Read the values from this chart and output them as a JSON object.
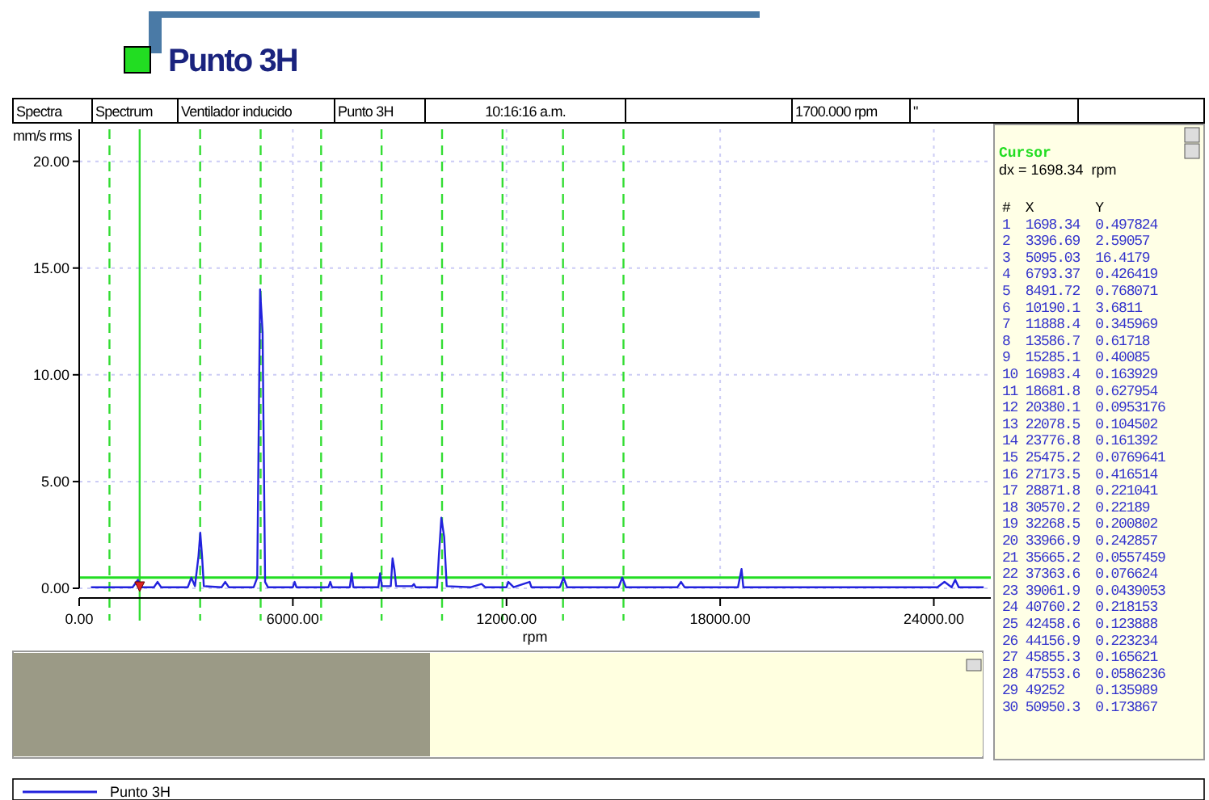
{
  "chart_data": [
    {
      "type": "line",
      "title": "Punto 3H",
      "xlabel": "rpm",
      "ylabel": "mm/s rms",
      "annotations": [
        "Spectra",
        "Spectrum",
        "Ventilador inducido",
        "Punto 3H",
        "10:16:16 a.m.",
        "1700.000 rpm",
        "\""
      ],
      "xlim": [
        0,
        25600
      ],
      "ylim": [
        0,
        21.5
      ],
      "xticks": [
        {
          "value": 0,
          "label": "0.00"
        },
        {
          "value": 6000,
          "label": "6000.00"
        },
        {
          "value": 12000,
          "label": "12000.00"
        },
        {
          "value": 18000,
          "label": "18000.00"
        },
        {
          "value": 24000,
          "label": "24000.00"
        }
      ],
      "yticks": [
        {
          "value": 0,
          "label": "0.00"
        },
        {
          "value": 5,
          "label": "5.00"
        },
        {
          "value": 10,
          "label": "10.00"
        },
        {
          "value": 15,
          "label": "15.00"
        },
        {
          "value": 20,
          "label": "20.00"
        }
      ],
      "grid": true,
      "legend": "bottom",
      "marker": "none",
      "line_style": "solid",
      "ref_lines": [
        {
          "axis": "x",
          "value": 850,
          "color": "#33dd33",
          "line_style": "dashed"
        },
        {
          "axis": "x",
          "value": 1698.34,
          "color": "#33dd33",
          "line_style": "solid"
        },
        {
          "axis": "x",
          "value": 3396.69,
          "color": "#33dd33",
          "line_style": "dashed"
        },
        {
          "axis": "x",
          "value": 5095.03,
          "color": "#33dd33",
          "line_style": "dashed"
        },
        {
          "axis": "x",
          "value": 6793.37,
          "color": "#33dd33",
          "line_style": "dashed"
        },
        {
          "axis": "x",
          "value": 8491.72,
          "color": "#33dd33",
          "line_style": "dashed"
        },
        {
          "axis": "x",
          "value": 10190.1,
          "color": "#33dd33",
          "line_style": "dashed"
        },
        {
          "axis": "x",
          "value": 11888.4,
          "color": "#33dd33",
          "line_style": "dashed"
        },
        {
          "axis": "x",
          "value": 13586.7,
          "color": "#33dd33",
          "line_style": "dashed"
        },
        {
          "axis": "x",
          "value": 15285.1,
          "color": "#33dd33",
          "line_style": "dashed"
        },
        {
          "axis": "y",
          "value": 0.5,
          "color": "#22dd22",
          "line_style": "solid"
        }
      ],
      "series": [
        {
          "name": "Punto 3H",
          "color": "#2222dd",
          "x": [
            330,
            1500,
            1650,
            1750,
            2100,
            2200,
            2300,
            3050,
            3150,
            3250,
            3350,
            3400,
            3450,
            3500,
            4000,
            4100,
            4200,
            4900,
            5000,
            5080,
            5150,
            5220,
            5300,
            6000,
            6050,
            6100,
            7000,
            7050,
            7100,
            7600,
            7650,
            7700,
            8400,
            8450,
            8500,
            8750,
            8800,
            8850,
            8900,
            9350,
            9400,
            9450,
            10050,
            10100,
            10170,
            10250,
            10320,
            11000,
            11300,
            11400,
            12000,
            12050,
            12200,
            12650,
            12700,
            13500,
            13600,
            13700,
            15150,
            15250,
            15350,
            16800,
            16900,
            17000,
            18500,
            18600,
            18650,
            20000,
            24100,
            24300,
            24500,
            24600,
            24700,
            25400
          ],
          "values": [
            0.05,
            0.05,
            0.4,
            0.05,
            0.05,
            0.3,
            0.05,
            0.05,
            0.5,
            0.1,
            1.5,
            2.6,
            1.5,
            0.1,
            0.05,
            0.3,
            0.05,
            0.05,
            0.5,
            14.0,
            12.0,
            0.3,
            0.05,
            0.05,
            0.3,
            0.05,
            0.05,
            0.3,
            0.05,
            0.05,
            0.7,
            0.05,
            0.05,
            0.7,
            0.1,
            0.1,
            1.4,
            0.9,
            0.1,
            0.1,
            0.2,
            0.05,
            0.05,
            1.5,
            3.3,
            2.4,
            0.1,
            0.05,
            0.2,
            0.05,
            0.05,
            0.3,
            0.05,
            0.3,
            0.05,
            0.05,
            0.5,
            0.05,
            0.05,
            0.5,
            0.05,
            0.05,
            0.3,
            0.05,
            0.05,
            0.9,
            0.05,
            0.05,
            0.05,
            0.3,
            0.05,
            0.4,
            0.05,
            0.05
          ]
        }
      ]
    },
    {
      "type": "other",
      "title": "Cursor",
      "subtitle": "dx = 1698.34  rpm",
      "annotations": [
        "# X Y",
        "1 1698.34 0.497824",
        "2 3396.69 2.59057",
        "3 5095.03 16.4179",
        "4 6793.37 0.426419",
        "5 8491.72 0.768071",
        "6 10190.1 3.6811",
        "7 11888.4 0.345969",
        "8 13586.7 0.61718",
        "9 15285.1 0.40085",
        "10 16983.4 0.163929",
        "11 18681.8 0.627954",
        "12 20380.1 0.0953176",
        "13 22078.5 0.104502",
        "14 23776.8 0.161392",
        "15 25475.2 0.0769641",
        "16 27173.5 0.416514",
        "17 28871.8 0.221041",
        "18 30570.2 0.22189",
        "19 32268.5 0.200802",
        "20 33966.9 0.242857",
        "21 35665.2 0.0557459",
        "22 37363.6 0.076624",
        "23 39061.9 0.0439053",
        "24 40760.2 0.218153",
        "25 42458.6 0.123888",
        "26 44156.9 0.223234",
        "27 45855.3 0.165621",
        "28 47553.6 0.0586236",
        "29 49252 0.135989",
        "30 50950.3 0.173867"
      ]
    }
  ]
}
